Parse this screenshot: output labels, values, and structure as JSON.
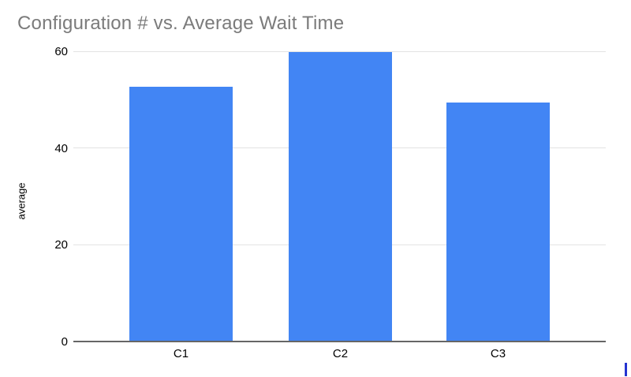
{
  "chart_data": {
    "type": "bar",
    "title": "Configuration # vs. Average Wait Time",
    "categories": [
      "C1",
      "C2",
      "C3"
    ],
    "values": [
      52.7,
      59.9,
      49.4
    ],
    "xlabel": "",
    "ylabel": "average",
    "yticks": [
      0,
      20,
      40,
      60
    ],
    "ylim": [
      0,
      60
    ],
    "grid": true,
    "legend": "none",
    "colors": {
      "bar": "#4285f4",
      "title": "#7b7b7b",
      "gridline": "#e3e3e3",
      "axis_line": "#666666",
      "tick_label": "#000000"
    }
  },
  "cursor": {
    "caret_color": "#2433d0"
  }
}
